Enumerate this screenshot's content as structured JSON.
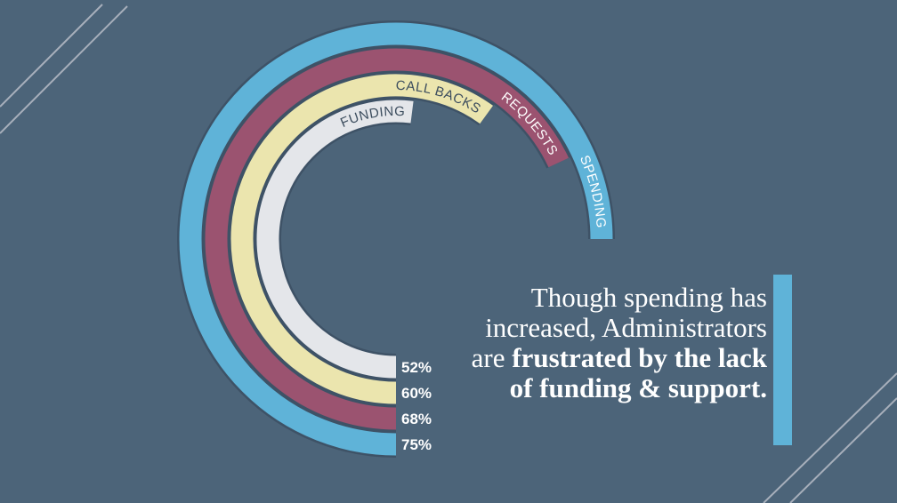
{
  "colors": {
    "background": "#4c6479",
    "accent": "#5fb3d8",
    "deco_line": "#a7afbb"
  },
  "chart_data": {
    "type": "radial-bar",
    "series": [
      {
        "name": "FUNDING",
        "value": 52,
        "label": "52%",
        "color": "#e4e6ea",
        "text_color": "#3c4d5e"
      },
      {
        "name": "CALL BACKS",
        "value": 60,
        "label": "60%",
        "color": "#ebe5ae",
        "text_color": "#3c4d5e"
      },
      {
        "name": "REQUESTS",
        "value": 68,
        "label": "68%",
        "color": "#9b5370",
        "text_color": "#ffffff"
      },
      {
        "name": "SPENDING",
        "value": 75,
        "label": "75%",
        "color": "#5fb3d8",
        "text_color": "#ffffff"
      }
    ]
  },
  "caption": {
    "lead": "Though spending has increased, Administrators are ",
    "emphasis": "frustrated by the lack of funding & support."
  }
}
